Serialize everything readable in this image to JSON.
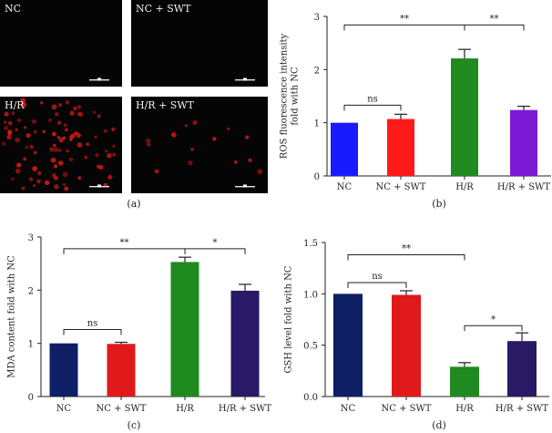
{
  "figure": {
    "panel_a": {
      "caption": "(a)",
      "tiles": [
        {
          "label": "NC",
          "cells": 0
        },
        {
          "label": "NC + SWT",
          "cells": 0
        },
        {
          "label": "H/R",
          "cells": 95
        },
        {
          "label": "H/R + SWT",
          "cells": 14
        }
      ]
    }
  },
  "chart_data": [
    {
      "id": "b",
      "type": "bar",
      "caption": "(b)",
      "title": "",
      "xlabel": "",
      "ylabel": "ROS fluorescence intensity fold with NC",
      "ylabel_lines": [
        "ROS fluorescence intensity",
        "fold with NC"
      ],
      "categories": [
        "NC",
        "NC + SWT",
        "H/R",
        "H/R + SWT"
      ],
      "values": [
        1.0,
        1.07,
        2.21,
        1.24
      ],
      "errors": [
        0.0,
        0.09,
        0.17,
        0.07
      ],
      "colors": [
        "#1a1aff",
        "#ff1a1a",
        "#1f8a1f",
        "#7a1ad6"
      ],
      "ylim": [
        0,
        3
      ],
      "yticks": [
        0,
        1,
        2,
        3
      ],
      "ytick_labels": [
        "0",
        "1",
        "2",
        "3"
      ],
      "significance": [
        {
          "from": 0,
          "to": 1,
          "label": "ns",
          "level": 1.33
        },
        {
          "from": 0,
          "to": 2,
          "label": "**",
          "level": 2.84
        },
        {
          "from": 2,
          "to": 3,
          "label": "**",
          "level": 2.84
        }
      ]
    },
    {
      "id": "c",
      "type": "bar",
      "caption": "(c)",
      "title": "",
      "xlabel": "",
      "ylabel": "MDA content fold with NC",
      "ylabel_lines": [
        "MDA content fold with NC"
      ],
      "categories": [
        "NC",
        "NC + SWT",
        "H/R",
        "H/R + SWT"
      ],
      "values": [
        1.0,
        0.99,
        2.53,
        1.99
      ],
      "errors": [
        0.0,
        0.03,
        0.09,
        0.12
      ],
      "colors": [
        "#0e1f66",
        "#e01a1a",
        "#1f8a1f",
        "#2a1a66"
      ],
      "ylim": [
        0,
        3
      ],
      "yticks": [
        0,
        1,
        2,
        3
      ],
      "ytick_labels": [
        "0",
        "1",
        "2",
        "3"
      ],
      "significance": [
        {
          "from": 0,
          "to": 1,
          "label": "ns",
          "level": 1.26
        },
        {
          "from": 0,
          "to": 2,
          "label": "**",
          "level": 2.78
        },
        {
          "from": 2,
          "to": 3,
          "label": "*",
          "level": 2.78
        }
      ]
    },
    {
      "id": "d",
      "type": "bar",
      "caption": "(d)",
      "title": "",
      "xlabel": "",
      "ylabel": "GSH level fold with NC",
      "ylabel_lines": [
        "GSH level fold with NC"
      ],
      "categories": [
        "NC",
        "NC + SWT",
        "H/R",
        "H/R + SWT"
      ],
      "values": [
        1.0,
        0.99,
        0.29,
        0.54
      ],
      "errors": [
        0.0,
        0.04,
        0.04,
        0.08
      ],
      "colors": [
        "#0e1f66",
        "#e01a1a",
        "#1f8a1f",
        "#2a1a66"
      ],
      "ylim": [
        0,
        1.5
      ],
      "yticks": [
        0,
        0.5,
        1.0,
        1.5
      ],
      "ytick_labels": [
        "0.0",
        "0.5",
        "1.0",
        "1.5"
      ],
      "significance": [
        {
          "from": 0,
          "to": 1,
          "label": "ns",
          "level": 1.11
        },
        {
          "from": 0,
          "to": 2,
          "label": "**",
          "level": 1.38
        },
        {
          "from": 2,
          "to": 3,
          "label": "*",
          "level": 0.69
        }
      ]
    }
  ]
}
